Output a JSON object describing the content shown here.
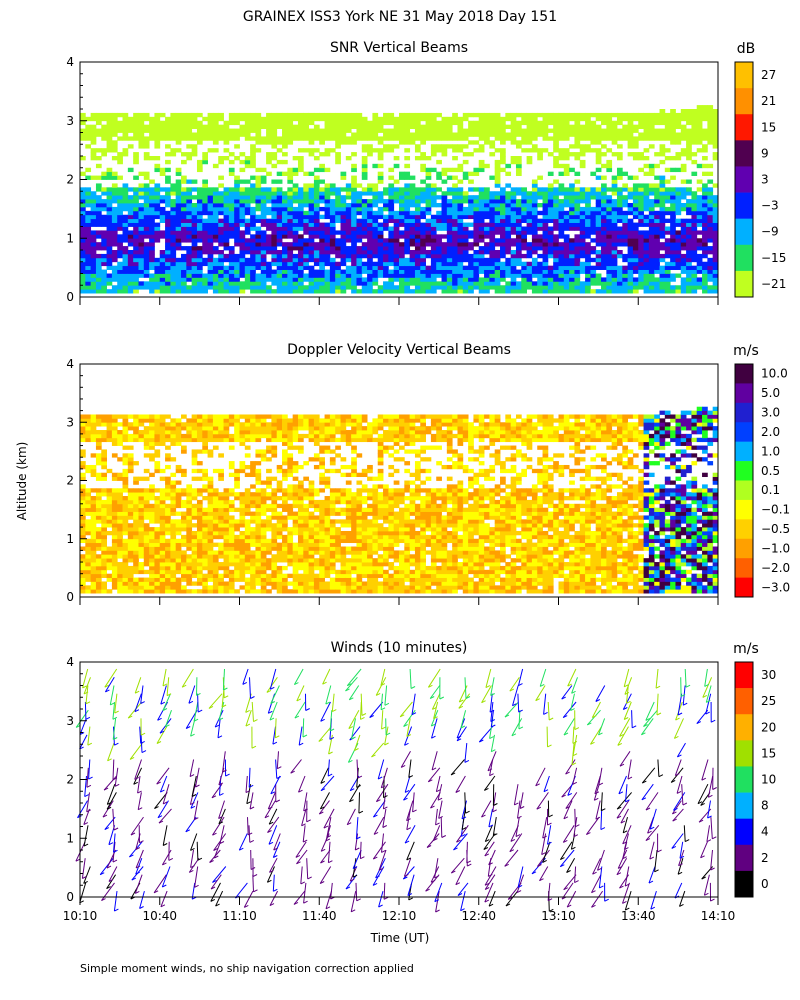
{
  "figure": {
    "title": "GRAINEX ISS3 York NE  31 May 2018 Day 151",
    "y_axis_label": "Altitude (km)",
    "x_axis_label": "Time (UT)",
    "footnote": "Simple moment winds, no ship navigation correction applied"
  },
  "chart_data": [
    {
      "type": "heatmap",
      "title": "SNR Vertical Beams",
      "colorbar_unit": "dB",
      "colorbar_ticks": [
        "27",
        "21",
        "15",
        "9",
        "3",
        "−3",
        "−9",
        "−15",
        "−21"
      ],
      "colorbar_colors": [
        "#ffc000",
        "#ff9000",
        "#ff1800",
        "#500050",
        "#6000b0",
        "#0020ff",
        "#00b0ff",
        "#20e060",
        "#c0ff20"
      ],
      "y_ticks": [
        "0",
        "1",
        "2",
        "3",
        "4"
      ],
      "ylim": [
        0,
        4
      ],
      "x_range": [
        "10:10",
        "14:10"
      ]
    },
    {
      "type": "heatmap",
      "title": "Doppler Velocity Vertical Beams",
      "colorbar_unit": "m/s",
      "colorbar_ticks": [
        "10.0",
        "5.0",
        "3.0",
        "2.0",
        "1.0",
        "0.5",
        "0.1",
        "−0.1",
        "−0.5",
        "−1.0",
        "−2.0",
        "−3.0"
      ],
      "colorbar_colors": [
        "#400040",
        "#6000a0",
        "#2020d0",
        "#0040ff",
        "#00b0ff",
        "#20ff20",
        "#b0ff20",
        "#ffff00",
        "#ffd000",
        "#ffa000",
        "#ff6000",
        "#ff0000"
      ],
      "y_ticks": [
        "0",
        "1",
        "2",
        "3",
        "4"
      ],
      "ylim": [
        0,
        4
      ],
      "x_range": [
        "10:10",
        "14:10"
      ]
    },
    {
      "type": "scatter",
      "title": "Winds (10 minutes)",
      "colorbar_unit": "m/s",
      "colorbar_ticks": [
        "30",
        "25",
        "20",
        "15",
        "10",
        "8",
        "4",
        "2",
        "0"
      ],
      "colorbar_colors": [
        "#ff0000",
        "#ff6000",
        "#ffb000",
        "#a0e000",
        "#20e060",
        "#00b0ff",
        "#0000ff",
        "#600080",
        "#000000"
      ],
      "y_ticks": [
        "0",
        "1",
        "2",
        "3",
        "4"
      ],
      "ylim": [
        0,
        4
      ],
      "x_tick_labels": [
        "10:10",
        "10:40",
        "11:10",
        "11:40",
        "12:10",
        "12:40",
        "13:10",
        "13:40",
        "14:10"
      ]
    }
  ]
}
